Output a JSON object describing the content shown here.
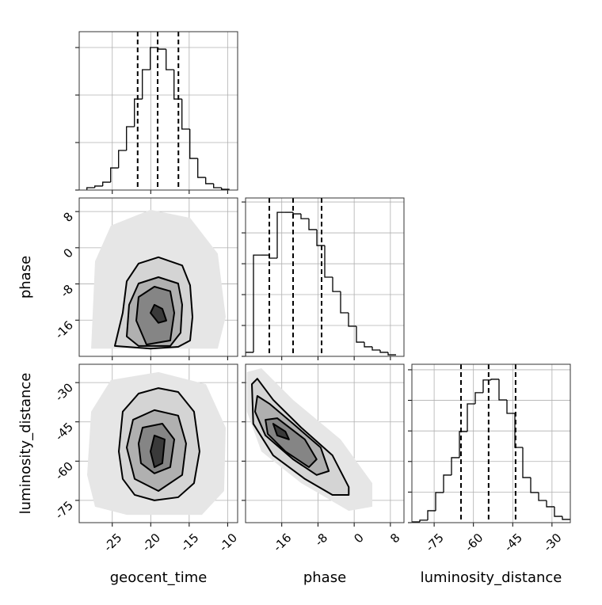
{
  "chart_data": [
    {
      "type": "histogram",
      "xlim": [
        -29.3,
        -8.7
      ],
      "ylim": [
        0,
        1667
      ],
      "xticks": [
        -25,
        -20,
        -15,
        -10
      ],
      "yticks": [
        0,
        500,
        1000,
        1500
      ],
      "grid": true,
      "xticklabels": false,
      "yticklabels": false,
      "color": "#000000",
      "bins": [
        -28.3,
        -27.27,
        -26.24,
        -25.21,
        -24.18,
        -23.15,
        -22.12,
        -21.09,
        -20.06,
        -19.03,
        -18.0,
        -16.97,
        -15.94,
        -14.91,
        -13.88,
        -12.85,
        -11.82,
        -10.79,
        -9.76
      ],
      "values": [
        25,
        42,
        83,
        233,
        417,
        667,
        958,
        1267,
        1500,
        1483,
        1267,
        958,
        642,
        333,
        133,
        67,
        25,
        8
      ],
      "quantiles": [
        -21.7,
        -19.1,
        -16.4
      ]
    },
    {
      "type": "contour",
      "xlim": [
        -29.3,
        -8.7
      ],
      "ylim": [
        -24,
        11
      ],
      "xticks": [
        -25,
        -20,
        -15,
        -10
      ],
      "yticks": [
        8,
        0,
        -8,
        -16
      ],
      "grid": true,
      "xticklabels": false,
      "yticklabels": true,
      "ylabel": "phase",
      "line_color": "#000000",
      "cloud": {
        "color": "#e6e6e6",
        "x": [
          -27.75,
          -27.24,
          -25.18,
          -20.03,
          -14.88,
          -11.28,
          -10.25,
          -11.28
        ],
        "y": [
          -22.3,
          -3.0,
          4.9,
          8.4,
          6.6,
          -1.3,
          -15.3,
          -22.3
        ]
      },
      "contours": [
        {
          "color": "#d4d4d4",
          "x": [
            -24.67,
            -23.64,
            -23.12,
            -21.58,
            -19.0,
            -15.91,
            -14.88,
            -14.57,
            -14.88,
            -16.43,
            -20.03
          ],
          "y": [
            -21.7,
            -14.4,
            -7.4,
            -3.5,
            -2.1,
            -3.9,
            -8.3,
            -15.3,
            -20.5,
            -21.9,
            -22.3
          ]
        },
        {
          "color": "#b0b0b0",
          "x": [
            -23.12,
            -22.81,
            -21.58,
            -19.0,
            -16.43,
            -15.91,
            -16.12,
            -17.46,
            -21.58
          ],
          "y": [
            -19.6,
            -12.6,
            -7.9,
            -6.5,
            -7.9,
            -12.6,
            -18.8,
            -21.7,
            -21.7
          ]
        },
        {
          "color": "#858585",
          "x": [
            -21.88,
            -21.58,
            -19.52,
            -17.46,
            -16.94,
            -17.46,
            -20.55
          ],
          "y": [
            -16.1,
            -10.9,
            -8.6,
            -9.6,
            -14.4,
            -20.5,
            -21.4
          ]
        },
        {
          "color": "#3a3a3a",
          "x": [
            -20.03,
            -19.52,
            -18.49,
            -17.97,
            -19.0
          ],
          "y": [
            -14.4,
            -12.6,
            -13.5,
            -16.1,
            -16.6
          ]
        }
      ]
    },
    {
      "type": "histogram",
      "xlim": [
        -24,
        11
      ],
      "ylim": [
        0,
        1026
      ],
      "xticks": [
        -16,
        -8,
        0,
        8
      ],
      "yticks": [
        0,
        200,
        400,
        600,
        800,
        1000
      ],
      "grid": true,
      "xticklabels": false,
      "yticklabels": false,
      "color": "#000000",
      "bins": [
        -24.0,
        -22.25,
        -20.5,
        -18.75,
        -17.0,
        -15.25,
        -13.5,
        -11.75,
        -10.0,
        -8.25,
        -6.5,
        -4.75,
        -3.0,
        -1.25,
        0.5,
        2.25,
        4.0,
        5.75,
        7.5,
        9.25
      ],
      "values": [
        26,
        656,
        656,
        636,
        933,
        933,
        923,
        892,
        821,
        718,
        513,
        420,
        282,
        195,
        92,
        62,
        41,
        26,
        10
      ],
      "quantiles": [
        -18.75,
        -13.5,
        -7.2
      ]
    },
    {
      "type": "contour",
      "xlim": [
        -29.3,
        -8.7
      ],
      "ylim": [
        -83.5,
        -23
      ],
      "xticks": [
        -25,
        -20,
        -15,
        -10
      ],
      "yticks": [
        -30,
        -45,
        -60,
        -75
      ],
      "grid": true,
      "xticklabels": true,
      "yticklabels": true,
      "xlabel": "geocent_time",
      "ylabel": "luminosity_distance",
      "line_color": "#000000",
      "cloud": {
        "color": "#e6e6e6",
        "x": [
          -28.27,
          -27.75,
          -25.18,
          -19.0,
          -12.82,
          -10.25,
          -10.46,
          -13.34,
          -23.12,
          -27.24
        ],
        "y": [
          -65.3,
          -41.1,
          -29.0,
          -26.0,
          -30.6,
          -47.2,
          -71.4,
          -80.5,
          -80.5,
          -77.4
        ]
      },
      "contours": [
        {
          "color": "#d4d4d4",
          "x": [
            -24.15,
            -23.64,
            -21.58,
            -19.0,
            -16.43,
            -14.37,
            -13.65,
            -14.37,
            -16.43,
            -19.52,
            -22.09,
            -23.64
          ],
          "y": [
            -56.3,
            -41.1,
            -34.2,
            -32.1,
            -33.6,
            -41.1,
            -56.3,
            -68.4,
            -73.8,
            -75.0,
            -72.9,
            -66.8
          ]
        },
        {
          "color": "#b0b0b0",
          "x": [
            -23.12,
            -22.3,
            -19.52,
            -16.43,
            -15.4,
            -15.91,
            -19.0,
            -22.09
          ],
          "y": [
            -54.8,
            -44.2,
            -40.5,
            -42.6,
            -53.3,
            -65.3,
            -71.4,
            -66.8
          ]
        },
        {
          "color": "#858585",
          "x": [
            -21.58,
            -21.06,
            -18.49,
            -16.94,
            -17.46,
            -19.52,
            -21.27
          ],
          "y": [
            -53.3,
            -47.2,
            -45.7,
            -51.7,
            -62.3,
            -64.7,
            -60.8
          ]
        },
        {
          "color": "#3a3a3a",
          "x": [
            -20.03,
            -19.52,
            -18.18,
            -18.49,
            -19.52
          ],
          "y": [
            -56.3,
            -50.2,
            -51.7,
            -60.8,
            -62.3
          ]
        }
      ]
    },
    {
      "type": "contour",
      "xlim": [
        -24,
        11
      ],
      "ylim": [
        -83.5,
        -23
      ],
      "xticks": [
        -16,
        -8,
        0,
        8
      ],
      "yticks": [
        -30,
        -45,
        -60,
        -75
      ],
      "grid": true,
      "xticklabels": true,
      "yticklabels": false,
      "xlabel": "phase",
      "line_color": "#000000",
      "cloud": {
        "color": "#e6e6e6",
        "x": [
          -23.7,
          -20.5,
          -13.5,
          -3.0,
          4.0,
          4.0,
          -1.2,
          -11.7,
          -20.5,
          -23.7
        ],
        "y": [
          -26.0,
          -24.5,
          -36.6,
          -51.7,
          -68.4,
          -77.4,
          -79.0,
          -68.4,
          -56.3,
          -41.1
        ]
      },
      "contours": [
        {
          "color": "#d4d4d4",
          "x": [
            -22.6,
            -21.4,
            -17.9,
            -11.7,
            -4.8,
            -1.2,
            -1.2,
            -4.8,
            -10.9,
            -17.9,
            -22.3
          ],
          "y": [
            -30.6,
            -28.5,
            -36.6,
            -47.2,
            -57.8,
            -69.9,
            -72.9,
            -72.9,
            -66.8,
            -57.8,
            -45.7
          ]
        },
        {
          "color": "#b0b0b0",
          "x": [
            -21.4,
            -18.7,
            -13.5,
            -7.4,
            -5.6,
            -8.3,
            -13.5,
            -19.6,
            -21.9
          ],
          "y": [
            -35.1,
            -38.1,
            -45.7,
            -54.8,
            -63.8,
            -65.3,
            -59.3,
            -50.2,
            -41.1
          ]
        },
        {
          "color": "#858585",
          "x": [
            -19.6,
            -17.0,
            -10.9,
            -8.3,
            -10.0,
            -15.2,
            -19.1
          ],
          "y": [
            -44.2,
            -43.6,
            -51.7,
            -59.3,
            -62.3,
            -56.3,
            -49.6
          ]
        },
        {
          "color": "#3a3a3a",
          "x": [
            -17.9,
            -15.2,
            -14.4,
            -17.0
          ],
          "y": [
            -45.7,
            -48.7,
            -51.7,
            -50.2
          ]
        }
      ]
    },
    {
      "type": "histogram",
      "xlim": [
        -83.5,
        -23
      ],
      "ylim": [
        0,
        1036
      ],
      "xticks": [
        -75,
        -60,
        -45,
        -30
      ],
      "yticks": [
        0,
        200,
        400,
        600,
        800,
        1000
      ],
      "grid": true,
      "xticklabels": true,
      "yticklabels": false,
      "xlabel": "luminosity_distance",
      "color": "#000000",
      "bins": [
        -83.5,
        -80.475,
        -77.45,
        -74.425,
        -71.4,
        -68.375,
        -65.35,
        -62.325,
        -59.3,
        -56.275,
        -53.25,
        -50.225,
        -47.2,
        -44.175,
        -41.15,
        -38.125,
        -35.1,
        -32.075,
        -29.05,
        -26.025,
        -23.0
      ],
      "values": [
        5,
        16,
        78,
        197,
        311,
        425,
        596,
        777,
        850,
        933,
        938,
        803,
        715,
        492,
        295,
        197,
        145,
        104,
        41,
        21
      ],
      "quantiles": [
        -64.75,
        -54.2,
        -43.9
      ]
    }
  ]
}
